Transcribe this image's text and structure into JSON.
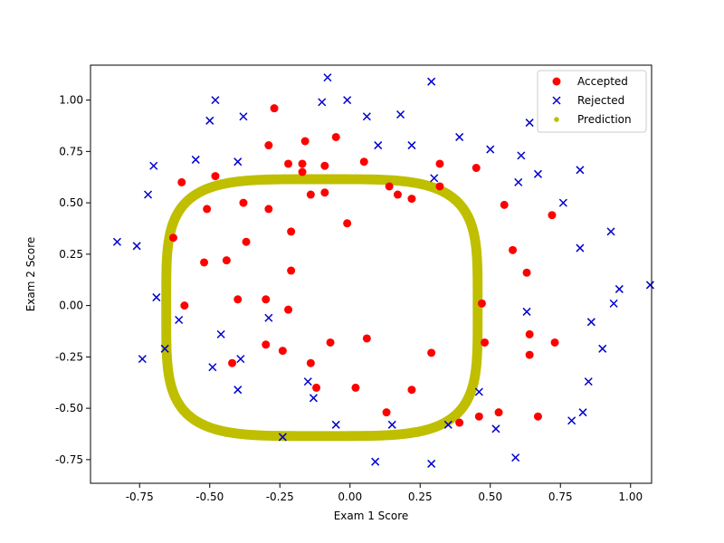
{
  "chart_data": {
    "type": "scatter",
    "title": "",
    "xlabel": "Exam 1 Score",
    "ylabel": "Exam 2 Score",
    "xlim": [
      -0.925,
      1.075
    ],
    "ylim": [
      -0.865,
      1.17
    ],
    "xticks": [
      "-0.75",
      "-0.50",
      "-0.25",
      "0.00",
      "0.25",
      "0.50",
      "0.75",
      "1.00"
    ],
    "xtick_values": [
      -0.75,
      -0.5,
      -0.25,
      0,
      0.25,
      0.5,
      0.75,
      1.0
    ],
    "yticks": [
      "-0.75",
      "-0.50",
      "-0.25",
      "0.00",
      "0.25",
      "0.50",
      "0.75",
      "1.00"
    ],
    "ytick_values": [
      -0.75,
      -0.5,
      -0.25,
      0,
      0.25,
      0.5,
      0.75,
      1.0
    ],
    "grid": false,
    "legend_position": "top-right",
    "series": [
      {
        "name": "Accepted",
        "marker": "circle",
        "color": "#ff0000",
        "points": [
          [
            -0.27,
            0.96
          ],
          [
            -0.05,
            0.82
          ],
          [
            -0.16,
            0.8
          ],
          [
            -0.29,
            0.78
          ],
          [
            -0.22,
            0.69
          ],
          [
            -0.17,
            0.69
          ],
          [
            -0.09,
            0.68
          ],
          [
            0.05,
            0.7
          ],
          [
            -0.17,
            0.65
          ],
          [
            -0.48,
            0.63
          ],
          [
            -0.6,
            0.6
          ],
          [
            -0.14,
            0.54
          ],
          [
            -0.09,
            0.55
          ],
          [
            0.14,
            0.58
          ],
          [
            0.17,
            0.54
          ],
          [
            0.22,
            0.52
          ],
          [
            0.32,
            0.58
          ],
          [
            0.32,
            0.69
          ],
          [
            0.45,
            0.67
          ],
          [
            -0.51,
            0.47
          ],
          [
            -0.38,
            0.5
          ],
          [
            -0.29,
            0.47
          ],
          [
            0.55,
            0.49
          ],
          [
            0.72,
            0.44
          ],
          [
            -0.01,
            0.4
          ],
          [
            -0.21,
            0.36
          ],
          [
            -0.63,
            0.33
          ],
          [
            -0.37,
            0.31
          ],
          [
            0.58,
            0.27
          ],
          [
            -0.52,
            0.21
          ],
          [
            -0.44,
            0.22
          ],
          [
            -0.21,
            0.17
          ],
          [
            0.63,
            0.16
          ],
          [
            -0.4,
            0.03
          ],
          [
            -0.3,
            0.03
          ],
          [
            -0.59,
            0.0
          ],
          [
            -0.22,
            -0.02
          ],
          [
            0.47,
            0.01
          ],
          [
            -0.07,
            -0.18
          ],
          [
            0.06,
            -0.16
          ],
          [
            -0.3,
            -0.19
          ],
          [
            -0.24,
            -0.22
          ],
          [
            0.29,
            -0.23
          ],
          [
            0.48,
            -0.18
          ],
          [
            0.64,
            -0.14
          ],
          [
            0.73,
            -0.18
          ],
          [
            0.64,
            -0.24
          ],
          [
            -0.42,
            -0.28
          ],
          [
            -0.14,
            -0.28
          ],
          [
            -0.12,
            -0.4
          ],
          [
            0.02,
            -0.4
          ],
          [
            0.22,
            -0.41
          ],
          [
            0.13,
            -0.52
          ],
          [
            0.46,
            -0.54
          ],
          [
            0.53,
            -0.52
          ],
          [
            0.67,
            -0.54
          ],
          [
            0.39,
            -0.57
          ]
        ]
      },
      {
        "name": "Rejected",
        "marker": "x",
        "color": "#0000cc",
        "points": [
          [
            -0.08,
            1.11
          ],
          [
            0.29,
            1.09
          ],
          [
            -0.48,
            1.0
          ],
          [
            -0.1,
            0.99
          ],
          [
            -0.01,
            1.0
          ],
          [
            0.06,
            0.92
          ],
          [
            -0.38,
            0.92
          ],
          [
            -0.5,
            0.9
          ],
          [
            0.18,
            0.93
          ],
          [
            0.64,
            0.89
          ],
          [
            0.39,
            0.82
          ],
          [
            0.1,
            0.78
          ],
          [
            0.22,
            0.78
          ],
          [
            0.5,
            0.76
          ],
          [
            0.61,
            0.73
          ],
          [
            -0.7,
            0.68
          ],
          [
            -0.55,
            0.71
          ],
          [
            -0.4,
            0.7
          ],
          [
            0.3,
            0.62
          ],
          [
            0.67,
            0.64
          ],
          [
            0.6,
            0.6
          ],
          [
            0.82,
            0.66
          ],
          [
            -0.72,
            0.54
          ],
          [
            0.76,
            0.5
          ],
          [
            -0.83,
            0.31
          ],
          [
            -0.76,
            0.29
          ],
          [
            0.93,
            0.36
          ],
          [
            0.82,
            0.28
          ],
          [
            0.63,
            -0.03
          ],
          [
            0.94,
            0.01
          ],
          [
            0.96,
            0.08
          ],
          [
            1.07,
            0.1
          ],
          [
            -0.69,
            0.04
          ],
          [
            -0.61,
            -0.07
          ],
          [
            -0.29,
            -0.06
          ],
          [
            0.86,
            -0.08
          ],
          [
            -0.46,
            -0.14
          ],
          [
            -0.66,
            -0.21
          ],
          [
            0.9,
            -0.21
          ],
          [
            -0.74,
            -0.26
          ],
          [
            -0.49,
            -0.3
          ],
          [
            -0.39,
            -0.26
          ],
          [
            0.85,
            -0.37
          ],
          [
            -0.15,
            -0.37
          ],
          [
            -0.13,
            -0.45
          ],
          [
            -0.4,
            -0.41
          ],
          [
            0.46,
            -0.42
          ],
          [
            0.83,
            -0.52
          ],
          [
            0.79,
            -0.56
          ],
          [
            -0.05,
            -0.58
          ],
          [
            0.35,
            -0.58
          ],
          [
            0.15,
            -0.58
          ],
          [
            0.52,
            -0.6
          ],
          [
            0.59,
            -0.74
          ],
          [
            0.09,
            -0.76
          ],
          [
            0.29,
            -0.77
          ],
          [
            -0.24,
            -0.64
          ]
        ]
      },
      {
        "name": "Prediction",
        "marker": "dot",
        "color": "#bfbf00",
        "description_shape": "decision boundary ring",
        "ring": {
          "center": [
            -0.1,
            -0.01
          ],
          "x_half_axis": 0.555,
          "y_half_axis": 0.625,
          "thickness": 0.035
        }
      }
    ]
  }
}
